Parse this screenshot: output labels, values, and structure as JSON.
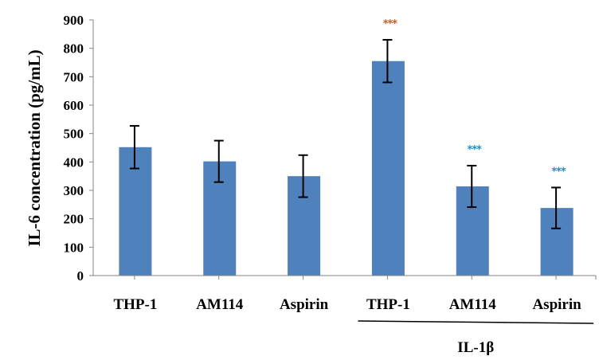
{
  "chart_data": {
    "type": "bar",
    "title": "",
    "xlabel": "",
    "ylabel": "IL-6 concentration (pg/mL)",
    "ylim": [
      0,
      900
    ],
    "yticks": [
      "0",
      "100",
      "200",
      "300",
      "400",
      "500",
      "600",
      "700",
      "800",
      "900"
    ],
    "grid": false,
    "categories": [
      "THP-1",
      "AM114",
      "Aspirin",
      "THP-1",
      "AM114",
      "Aspirin"
    ],
    "values": [
      452,
      402,
      350,
      755,
      314,
      238
    ],
    "errors": [
      75,
      73,
      74,
      75,
      73,
      72
    ],
    "group_label": {
      "text": "IL-1β",
      "spans": [
        3,
        5
      ]
    },
    "annotations": [
      {
        "category_index": 3,
        "text": "***",
        "color": "#C0622A"
      },
      {
        "category_index": 4,
        "text": "***",
        "color": "#1E90C8"
      },
      {
        "category_index": 5,
        "text": "***",
        "color": "#1E90C8"
      }
    ],
    "colors": {
      "bar": "#4F81BD",
      "error": "#000000",
      "axis": "#868686"
    }
  }
}
